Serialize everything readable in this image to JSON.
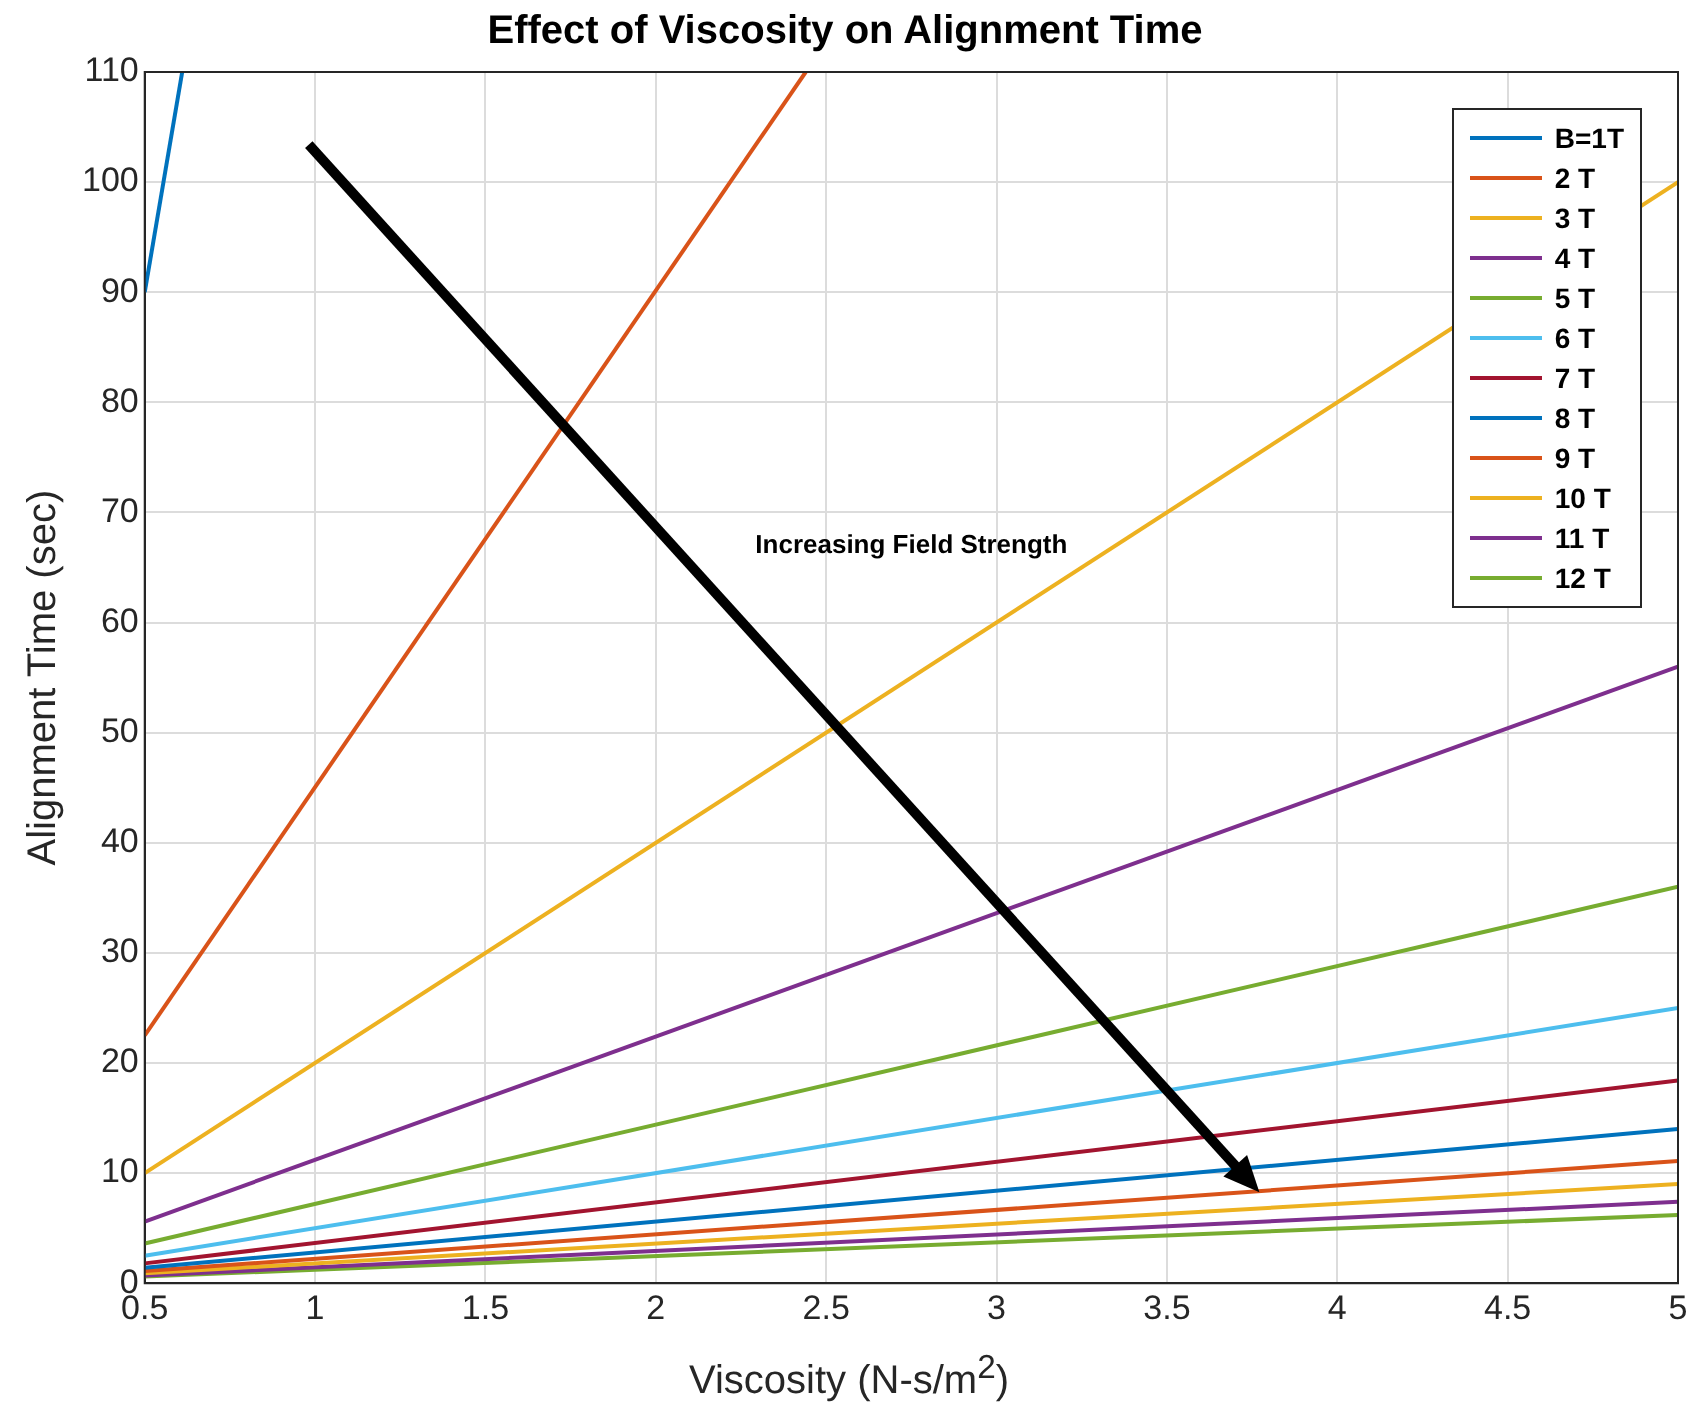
{
  "chart_data": {
    "type": "line",
    "title": "Effect of Viscosity on Alignment Time",
    "xlabel": "Viscosity (N-s/m$^{2}$)",
    "ylabel": "Alignment Time (sec)",
    "xlim": [
      0.5,
      5
    ],
    "xticks": [
      0.5,
      1,
      1.5,
      2,
      2.5,
      3,
      3.5,
      4,
      4.5,
      5
    ],
    "ylim": [
      0,
      110
    ],
    "yticks": [
      0,
      10,
      20,
      30,
      40,
      50,
      60,
      70,
      80,
      90,
      100,
      110
    ],
    "grid": true,
    "legend": "top right",
    "marker": "none",
    "line_style": "solid",
    "annotations": [
      "Increasing Field Strength"
    ],
    "series": [
      {
        "name": "B=1T",
        "color": "#0072bd",
        "x": [
          0.5,
          0.61
        ],
        "values": [
          90,
          110
        ]
      },
      {
        "name": "2 T",
        "color": "#d95319",
        "x": [
          0.5,
          2.44
        ],
        "values": [
          22.5,
          110
        ]
      },
      {
        "name": "3 T",
        "color": "#edb120",
        "x": [
          0.5,
          5
        ],
        "values": [
          10,
          100
        ]
      },
      {
        "name": "4 T",
        "color": "#7e2f8e",
        "x": [
          0.5,
          5
        ],
        "values": [
          5.6,
          56
        ]
      },
      {
        "name": "5 T",
        "color": "#77ac30",
        "x": [
          0.5,
          5
        ],
        "values": [
          3.6,
          36
        ]
      },
      {
        "name": "6 T",
        "color": "#4dbeee",
        "x": [
          0.5,
          5
        ],
        "values": [
          2.5,
          25
        ]
      },
      {
        "name": "7 T",
        "color": "#a2142f",
        "x": [
          0.5,
          5
        ],
        "values": [
          1.8,
          18.4
        ]
      },
      {
        "name": "8 T",
        "color": "#0072bd",
        "x": [
          0.5,
          5
        ],
        "values": [
          1.4,
          14
        ]
      },
      {
        "name": "9 T",
        "color": "#d95319",
        "x": [
          0.5,
          5
        ],
        "values": [
          1.1,
          11.1
        ]
      },
      {
        "name": "10 T",
        "color": "#edb120",
        "x": [
          0.5,
          5
        ],
        "values": [
          0.9,
          9
        ]
      },
      {
        "name": "11 T",
        "color": "#7e2f8e",
        "x": [
          0.5,
          5
        ],
        "values": [
          0.7,
          7.4
        ]
      },
      {
        "name": "12 T",
        "color": "#77ac30",
        "x": [
          0.5,
          5
        ],
        "values": [
          0.6,
          6.2
        ]
      }
    ]
  }
}
